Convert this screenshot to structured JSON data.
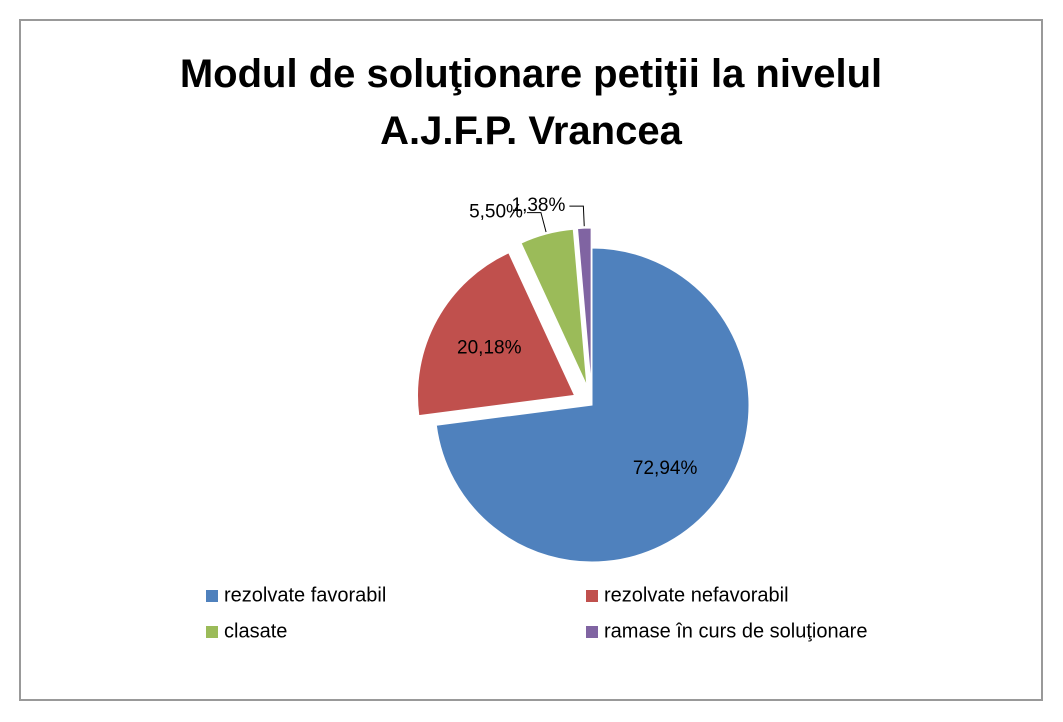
{
  "chart_data": {
    "type": "pie",
    "title": "Modul de soluţionare petiţii la nivelul A.J.F.P. Vrancea",
    "categories": [
      "rezolvate favorabil",
      "rezolvate nefavorabil",
      "clasate",
      "ramase în curs de soluţionare"
    ],
    "values": [
      72.94,
      20.18,
      5.5,
      1.38
    ],
    "value_labels": [
      "72,94%",
      "20,18%",
      "5,50%",
      "1,38%"
    ],
    "colors": [
      "#4f81bd",
      "#c0504d",
      "#9bbb59",
      "#8064a2"
    ],
    "legend": "bottom"
  }
}
